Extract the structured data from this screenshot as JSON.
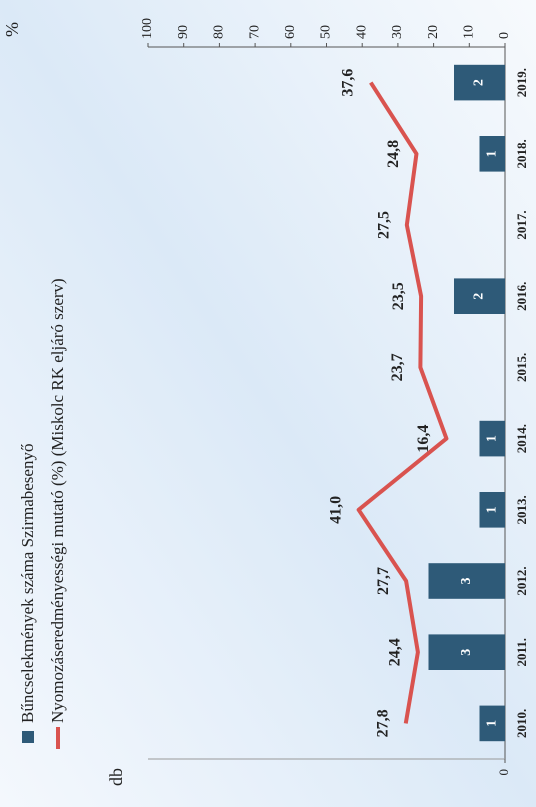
{
  "chart_data": {
    "type": "bar",
    "categories": [
      "2010.",
      "2011.",
      "2012.",
      "2013.",
      "2014.",
      "2015.",
      "2016.",
      "2017.",
      "2018.",
      "2019."
    ],
    "ylabel": "db",
    "y2label": "%",
    "ylim": [
      0,
      14
    ],
    "yticks": [
      0
    ],
    "y2lim": [
      0,
      100
    ],
    "y2ticks": [
      0,
      10,
      20,
      30,
      40,
      50,
      60,
      70,
      80,
      90,
      100
    ],
    "series": [
      {
        "name": "Bűncselekmények száma Szirmabesenyő",
        "type": "bar",
        "color": "#2e5a78",
        "values": [
          1,
          3,
          3,
          1,
          1,
          null,
          2,
          null,
          1,
          2
        ]
      },
      {
        "name": "Nyomozáseredményességi mutató (%) (Miskolc RK eljáró szerv)",
        "type": "line",
        "axis": "y2",
        "color": "#d9534f",
        "values": [
          27.8,
          24.4,
          27.7,
          41.0,
          16.4,
          23.7,
          23.5,
          27.5,
          24.8,
          37.6
        ],
        "value_labels": [
          "27,8",
          "24,4",
          "27,7",
          "41,0",
          "16,4",
          "23,7",
          "23,5",
          "27,5",
          "24,8",
          "37,6"
        ]
      }
    ]
  }
}
